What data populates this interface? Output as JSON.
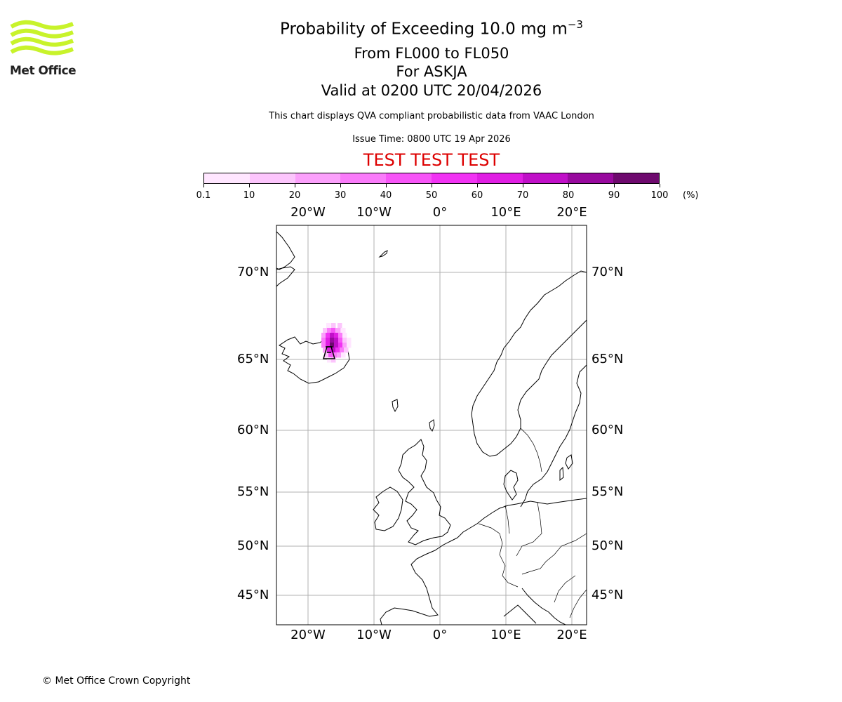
{
  "logo": {
    "text": "Met Office",
    "color": "#c8f32b"
  },
  "title": {
    "main": "Probability of Exceeding 10.0 mg m",
    "superscript": "−3",
    "line2": "From FL000 to FL050",
    "line3": "For ASKJA",
    "line4": "Valid at 0200 UTC 20/04/2026",
    "description": "This chart displays QVA compliant probabilistic data from VAAC London",
    "issue_time": "Issue Time: 0800 UTC 19 Apr 2026",
    "test_banner": "TEST TEST TEST",
    "test_color": "#dd0000"
  },
  "colorbar": {
    "ticks": [
      "0.1",
      "10",
      "20",
      "30",
      "40",
      "50",
      "60",
      "70",
      "80",
      "90",
      "100"
    ],
    "unit": "(%)",
    "colors": [
      "#ffe6ff",
      "#fcc5fc",
      "#fba0fb",
      "#fa7bfa",
      "#f755f7",
      "#f133f3",
      "#e01fe3",
      "#c010c8",
      "#980a9e",
      "#6e0a6e"
    ]
  },
  "map": {
    "longitude_labels": [
      "20°W",
      "10°W",
      "0°",
      "10°E",
      "20°E"
    ],
    "latitude_labels": [
      "70°N",
      "65°N",
      "60°N",
      "55°N",
      "50°N",
      "45°N"
    ],
    "volcano": "ASKJA",
    "grid_color": "#b0b0b0"
  },
  "footer": {
    "copyright": "© Met Office Crown Copyright"
  }
}
